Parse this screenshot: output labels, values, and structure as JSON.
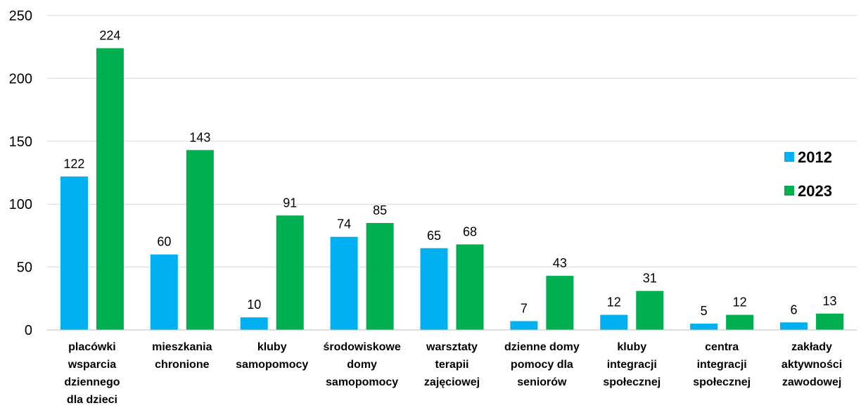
{
  "chart_data": {
    "type": "bar",
    "categories": [
      [
        "placówki",
        "wsparcia",
        "dziennego",
        "dla dzieci"
      ],
      [
        "mieszkania",
        "chronione"
      ],
      [
        "kluby",
        "samopomocy"
      ],
      [
        "środowiskowe",
        "domy",
        "samopomocy"
      ],
      [
        "warsztaty",
        "terapii",
        "zajęciowej"
      ],
      [
        "dzienne domy",
        "pomocy dla",
        "seniorów"
      ],
      [
        "kluby",
        "integracji",
        "społecznej"
      ],
      [
        "centra",
        "integracji",
        "społecznej"
      ],
      [
        "zakłady",
        "aktywności",
        "zawodowej"
      ]
    ],
    "series": [
      {
        "name": "2012",
        "color": "#00b0f0",
        "values": [
          122,
          60,
          10,
          74,
          65,
          7,
          12,
          5,
          6
        ]
      },
      {
        "name": "2023",
        "color": "#00b050",
        "values": [
          224,
          143,
          91,
          85,
          68,
          43,
          31,
          12,
          13
        ]
      }
    ],
    "ylim": [
      0,
      250
    ],
    "yticks": [
      "0",
      "50",
      "100",
      "150",
      "200",
      "250"
    ],
    "grid": true,
    "legend_position": "right",
    "gridline_color": "#d9d9d9",
    "axis_color": "#bfbfbf",
    "label_color": "#000000"
  }
}
